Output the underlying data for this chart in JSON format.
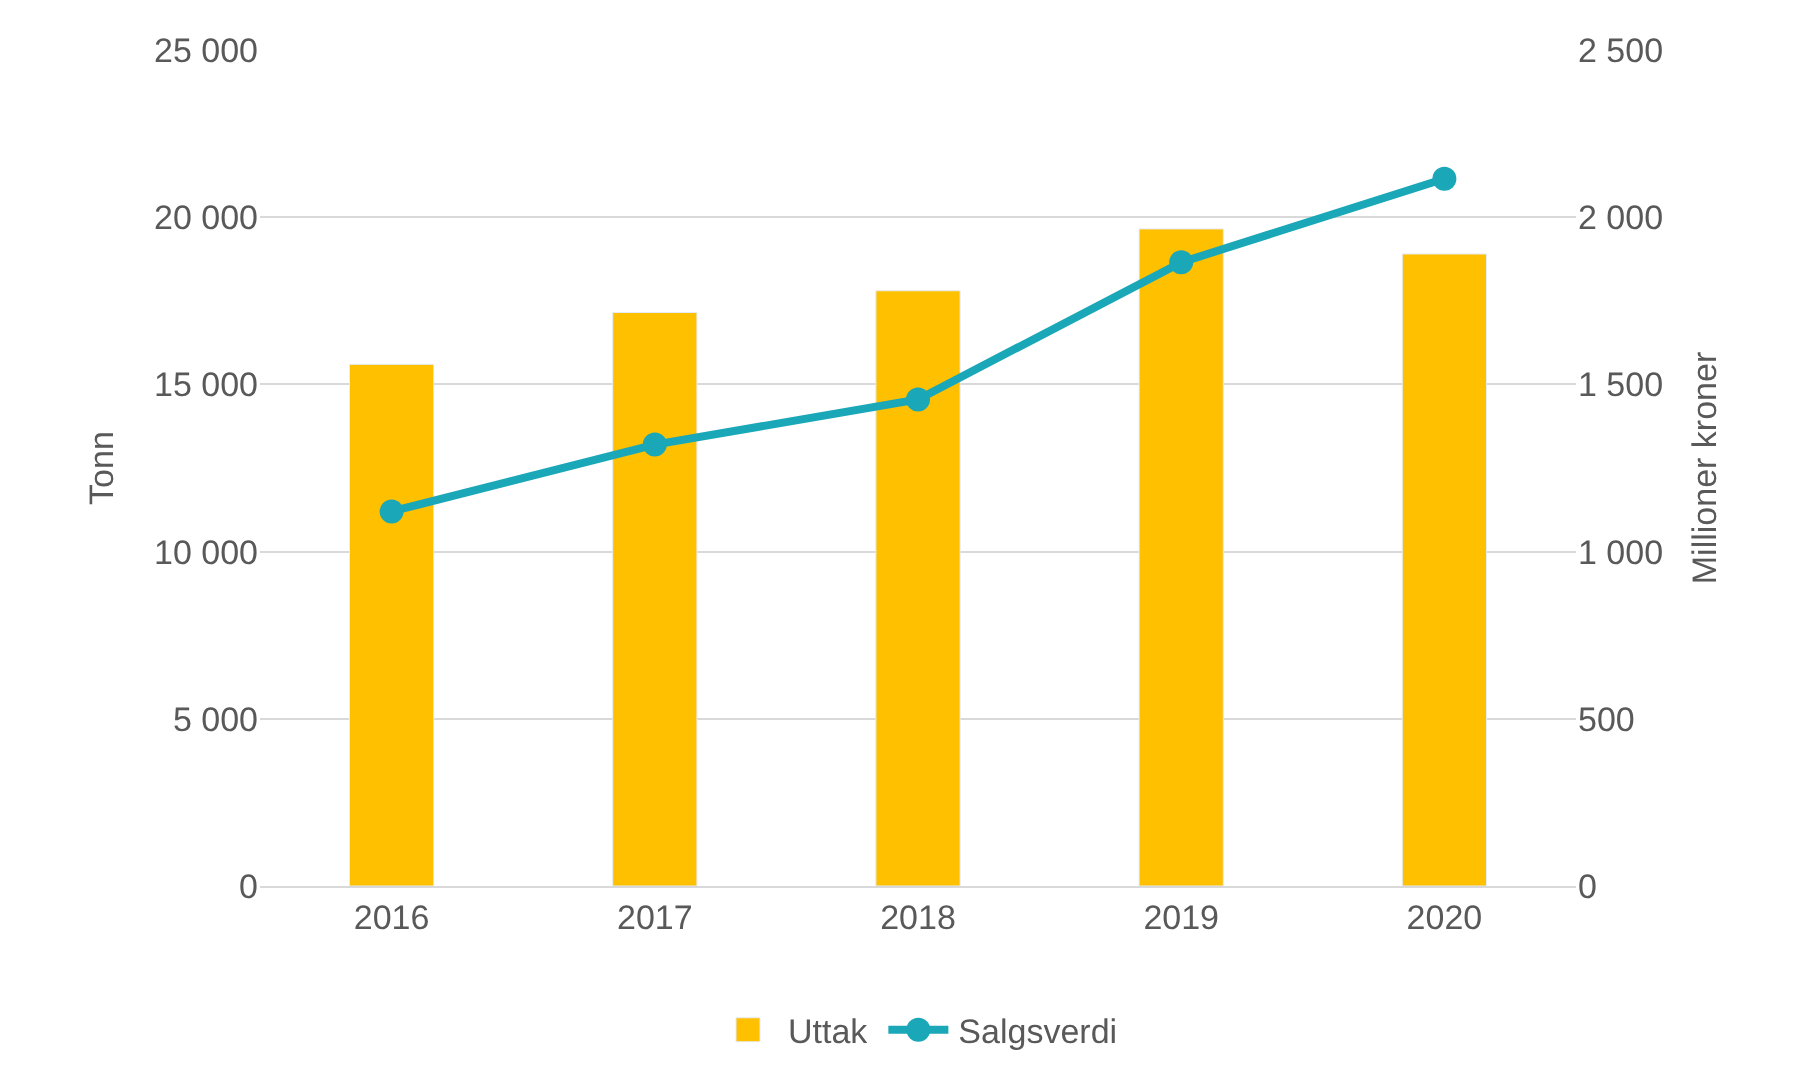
{
  "chart_data": {
    "type": "bar",
    "categories": [
      "2016",
      "2017",
      "2018",
      "2019",
      "2020"
    ],
    "series": [
      {
        "name": "Uttak",
        "color": "#ffc000",
        "values": [
          15600,
          17150,
          17800,
          19650,
          18900
        ]
      },
      {
        "name": "Salgsverdi",
        "color": "#1aa7b8",
        "type": "line",
        "axis": "y2",
        "marker": "circle",
        "values": [
          1120,
          1320,
          1455,
          1865,
          2115
        ]
      }
    ],
    "ylabel": "Tonn",
    "y2label": "Millioner kroner",
    "ylim": [
      0,
      25000
    ],
    "yticks": [
      {
        "value": 0,
        "label": "0"
      },
      {
        "value": 5000,
        "label": "5 000"
      },
      {
        "value": 10000,
        "label": "10 000"
      },
      {
        "value": 15000,
        "label": "15 000"
      },
      {
        "value": 20000,
        "label": "20 000"
      },
      {
        "value": 25000,
        "label": "25 000"
      }
    ],
    "y2lim": [
      0,
      2500
    ],
    "y2ticks": [
      {
        "value": 0,
        "label": "0"
      },
      {
        "value": 500,
        "label": "500"
      },
      {
        "value": 1000,
        "label": "1 000"
      },
      {
        "value": 1500,
        "label": "1 500"
      },
      {
        "value": 2000,
        "label": "2 000"
      },
      {
        "value": 2500,
        "label": "2 500"
      }
    ],
    "grid": "y",
    "legend": "bottom"
  }
}
